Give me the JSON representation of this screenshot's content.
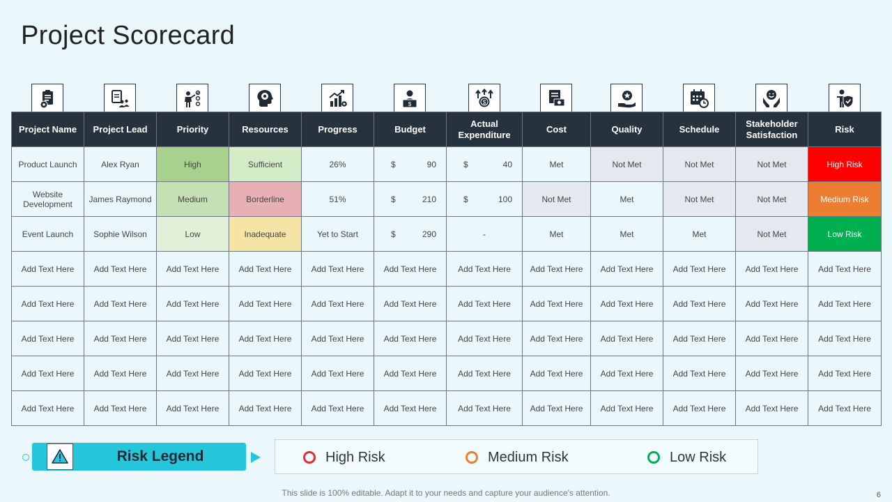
{
  "title": "Project Scorecard",
  "columns": [
    {
      "label": "Project Name",
      "icon": "clipboard-gear-icon"
    },
    {
      "label": "Project Lead",
      "icon": "team-clipboard-icon"
    },
    {
      "label": "Priority",
      "icon": "presenter-checklist-icon"
    },
    {
      "label": "Resources",
      "icon": "head-idea-icon"
    },
    {
      "label": "Progress",
      "icon": "growth-chart-icon"
    },
    {
      "label": "Budget",
      "icon": "person-laptop-dollar-icon"
    },
    {
      "label": "Actual Expenditure",
      "icon": "coin-arrows-icon"
    },
    {
      "label": "Cost",
      "icon": "invoice-money-icon"
    },
    {
      "label": "Quality",
      "icon": "hand-badge-icon"
    },
    {
      "label": "Schedule",
      "icon": "calendar-clock-icon"
    },
    {
      "label": "Stakeholder Satisfaction",
      "icon": "smiley-hands-icon"
    },
    {
      "label": "Risk",
      "icon": "person-shield-icon"
    }
  ],
  "rows": [
    [
      {
        "text": "Product Launch"
      },
      {
        "text": "Alex Ryan"
      },
      {
        "text": "High",
        "style": "green-d"
      },
      {
        "text": "Sufficient",
        "style": "sufficient"
      },
      {
        "text": "26%"
      },
      {
        "currency": "$",
        "amount": "90"
      },
      {
        "currency": "$",
        "amount": "40"
      },
      {
        "text": "Met"
      },
      {
        "text": "Not Met",
        "style": "grey"
      },
      {
        "text": "Not Met",
        "style": "grey"
      },
      {
        "text": "Not Met",
        "style": "grey"
      },
      {
        "text": "High Risk",
        "style": "high"
      }
    ],
    [
      {
        "text": "Website Development"
      },
      {
        "text": "James Raymond"
      },
      {
        "text": "Medium",
        "style": "green-m"
      },
      {
        "text": "Borderline",
        "style": "border"
      },
      {
        "text": "51%"
      },
      {
        "currency": "$",
        "amount": "210"
      },
      {
        "currency": "$",
        "amount": "100"
      },
      {
        "text": "Not Met",
        "style": "grey"
      },
      {
        "text": "Met"
      },
      {
        "text": "Not Met",
        "style": "grey"
      },
      {
        "text": "Not Met",
        "style": "grey"
      },
      {
        "text": "Medium Risk",
        "style": "med"
      }
    ],
    [
      {
        "text": "Event Launch"
      },
      {
        "text": "Sophie Wilson"
      },
      {
        "text": "Low",
        "style": "green-l"
      },
      {
        "text": "Inadequate",
        "style": "inadequate"
      },
      {
        "text": "Yet to Start"
      },
      {
        "currency": "$",
        "amount": "290"
      },
      {
        "text": "-"
      },
      {
        "text": "Met"
      },
      {
        "text": "Met"
      },
      {
        "text": "Met"
      },
      {
        "text": "Not Met",
        "style": "grey"
      },
      {
        "text": "Low Risk",
        "style": "low"
      }
    ],
    "placeholder",
    "placeholder",
    "placeholder",
    "placeholder",
    "placeholder"
  ],
  "placeholder_text": "Add Text Here",
  "legend": {
    "title": "Risk Legend",
    "icon": "warning-triangle-icon",
    "items": [
      {
        "label": "High Risk",
        "color": "#e52d2d"
      },
      {
        "label": "Medium Risk",
        "color": "#ed7d31"
      },
      {
        "label": "Low Risk",
        "color": "#00b050"
      }
    ]
  },
  "footer": "This slide is 100% editable. Adapt it to your needs and capture your audience's attention.",
  "page_number": "6"
}
